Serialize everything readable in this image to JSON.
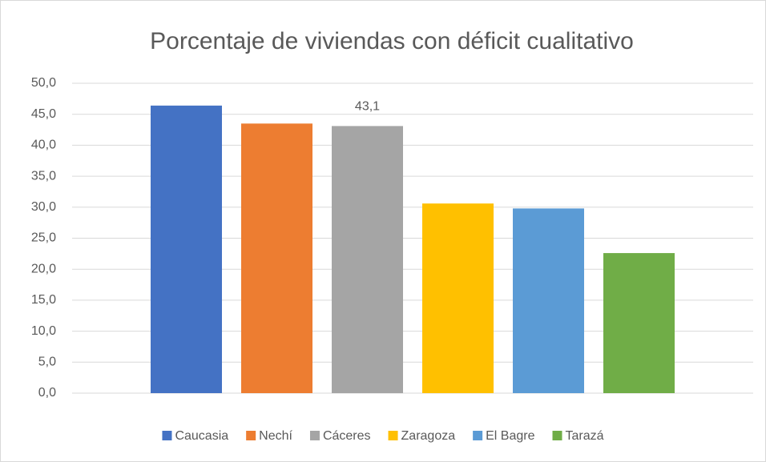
{
  "chart_data": {
    "type": "bar",
    "title": "Porcentaje de viviendas con déficit cualitativo",
    "categories": [
      null
    ],
    "series": [
      {
        "name": "Caucasia",
        "color": "#4472c4",
        "values": [
          46.4
        ]
      },
      {
        "name": "Nechí",
        "color": "#ed7d31",
        "values": [
          43.5
        ]
      },
      {
        "name": "Cáceres",
        "color": "#a5a5a5",
        "values": [
          43.1
        ],
        "value_labels": [
          "43,1"
        ]
      },
      {
        "name": "Zaragoza",
        "color": "#ffc000",
        "values": [
          30.6
        ]
      },
      {
        "name": "El Bagre",
        "color": "#5b9bd5",
        "values": [
          29.8
        ]
      },
      {
        "name": "Tarazá",
        "color": "#70ad47",
        "values": [
          22.6
        ]
      }
    ],
    "ylim": [
      0,
      50
    ],
    "yticks": [
      {
        "value": 0,
        "label": "0,0"
      },
      {
        "value": 5,
        "label": "5,0"
      },
      {
        "value": 10,
        "label": "10,0"
      },
      {
        "value": 15,
        "label": "15,0"
      },
      {
        "value": 20,
        "label": "20,0"
      },
      {
        "value": 25,
        "label": "25,0"
      },
      {
        "value": 30,
        "label": "30,0"
      },
      {
        "value": 35,
        "label": "35,0"
      },
      {
        "value": 40,
        "label": "40,0"
      },
      {
        "value": 45,
        "label": "45,0"
      },
      {
        "value": 50,
        "label": "50,0"
      }
    ],
    "grid": true,
    "legend": "bottom"
  }
}
